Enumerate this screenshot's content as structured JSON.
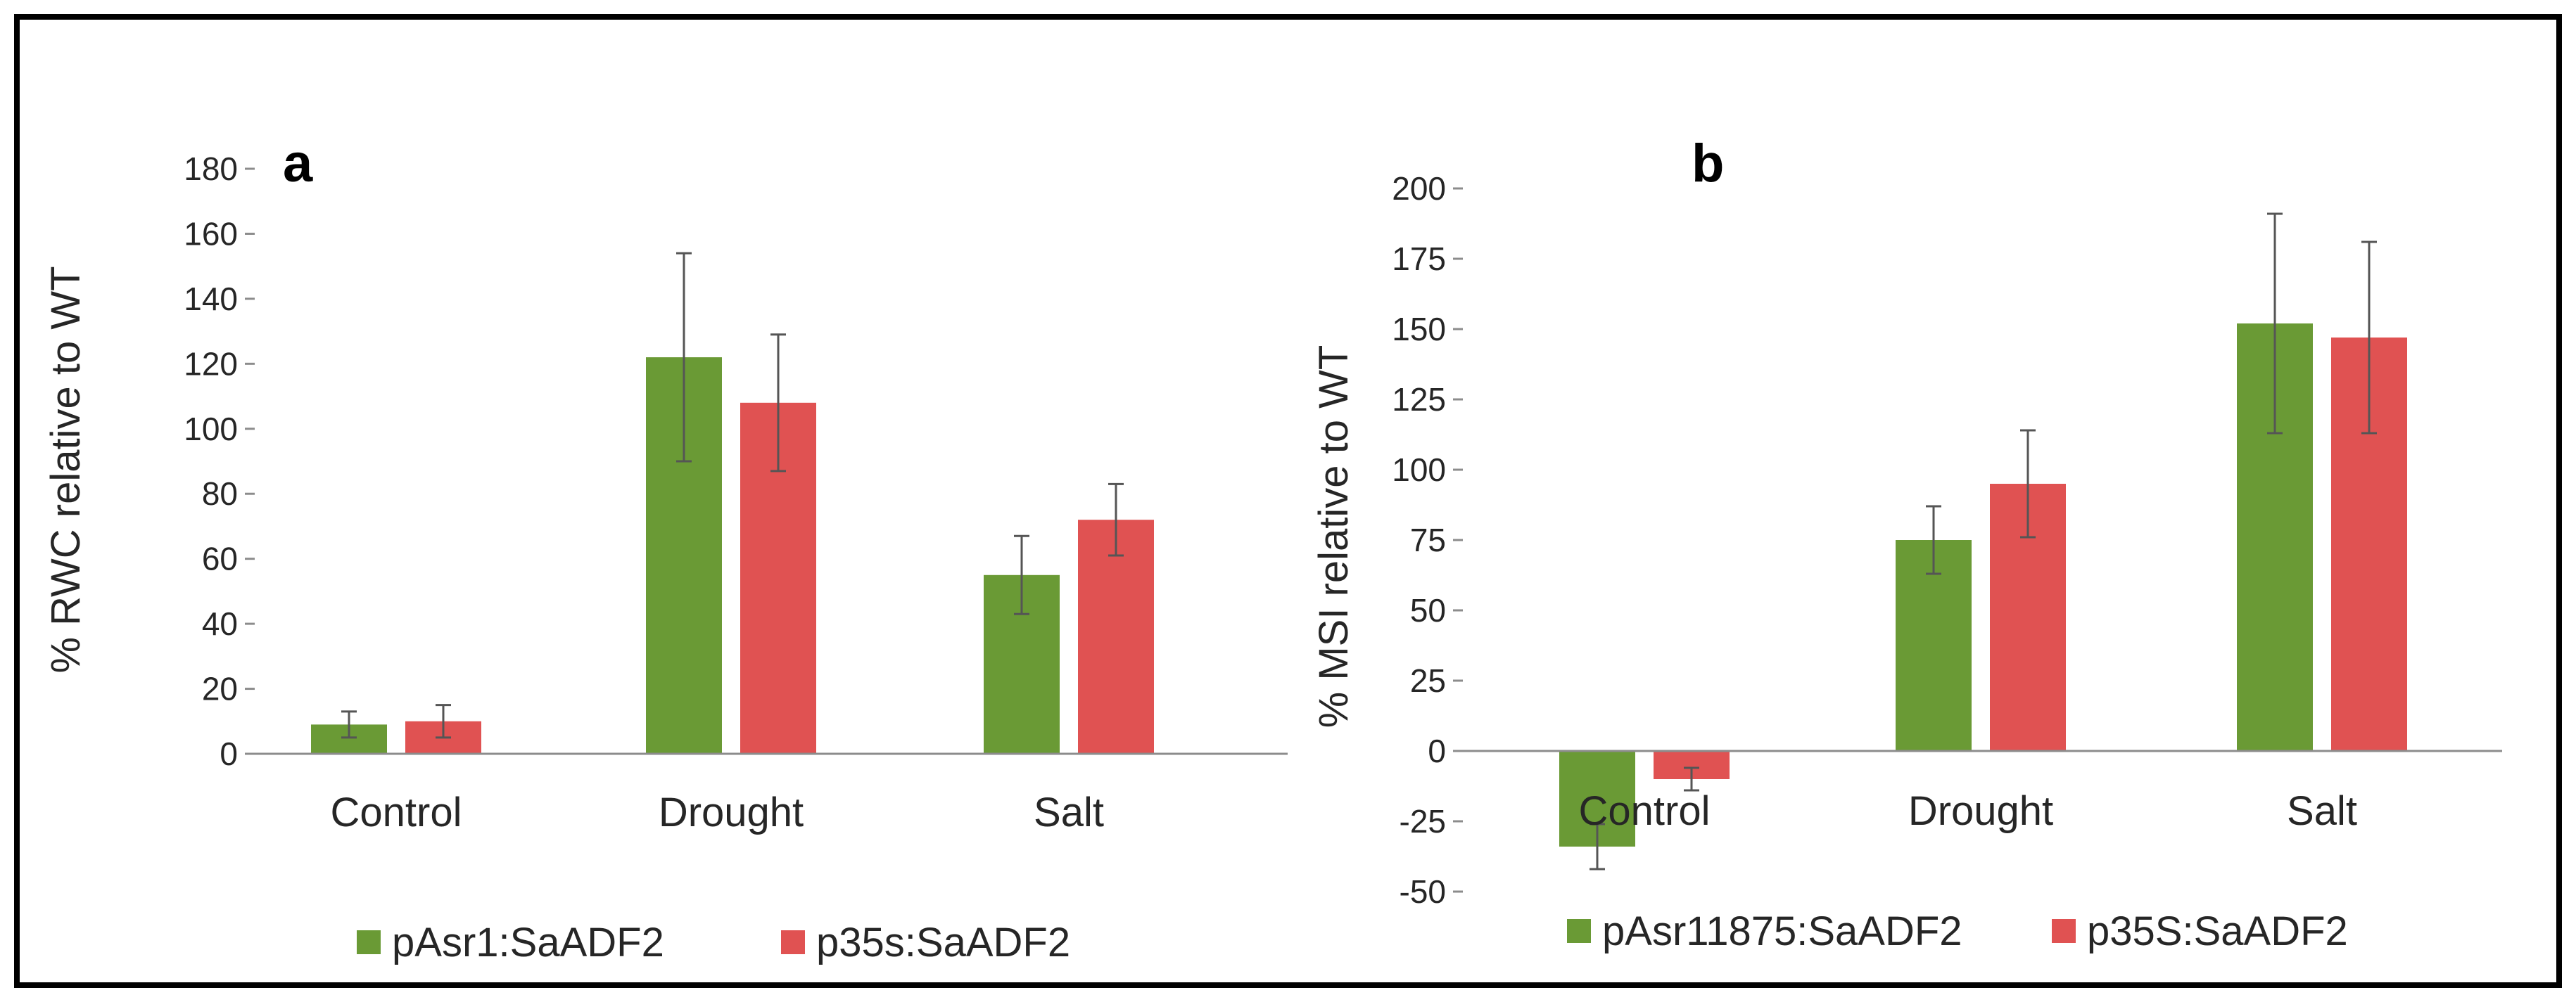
{
  "chart_data": [
    {
      "type": "bar",
      "panel_label": "a",
      "title": "",
      "xlabel": "",
      "ylabel": "% RWC relative to WT",
      "categories": [
        "Control",
        "Drought",
        "Salt"
      ],
      "ylim": [
        0,
        180
      ],
      "yticks": [
        0,
        20,
        40,
        60,
        80,
        100,
        120,
        140,
        160,
        180
      ],
      "grid": false,
      "legend_position": "bottom",
      "series": [
        {
          "name": "pAsr1:SaADF2",
          "color": "#6a9a35",
          "values": [
            9,
            122,
            55
          ],
          "errors": [
            4,
            32,
            12
          ]
        },
        {
          "name": "p35s:SaADF2",
          "color": "#e05252",
          "values": [
            10,
            108,
            72
          ],
          "errors": [
            5,
            21,
            11
          ]
        }
      ]
    },
    {
      "type": "bar",
      "panel_label": "b",
      "title": "",
      "xlabel": "",
      "ylabel": "% MSI relative to WT",
      "categories": [
        "Control",
        "Drought",
        "Salt"
      ],
      "ylim": [
        -50,
        200
      ],
      "yticks": [
        -50,
        -25,
        0,
        25,
        50,
        75,
        100,
        125,
        150,
        175,
        200
      ],
      "grid": false,
      "legend_position": "bottom",
      "series": [
        {
          "name": "pAsr11875:SaADF2",
          "color": "#6a9a35",
          "values": [
            -34,
            75,
            152
          ],
          "errors": [
            8,
            12,
            39
          ]
        },
        {
          "name": "p35S:SaADF2",
          "color": "#e05252",
          "values": [
            -10,
            95,
            147
          ],
          "errors": [
            4,
            19,
            34
          ]
        }
      ]
    }
  ]
}
